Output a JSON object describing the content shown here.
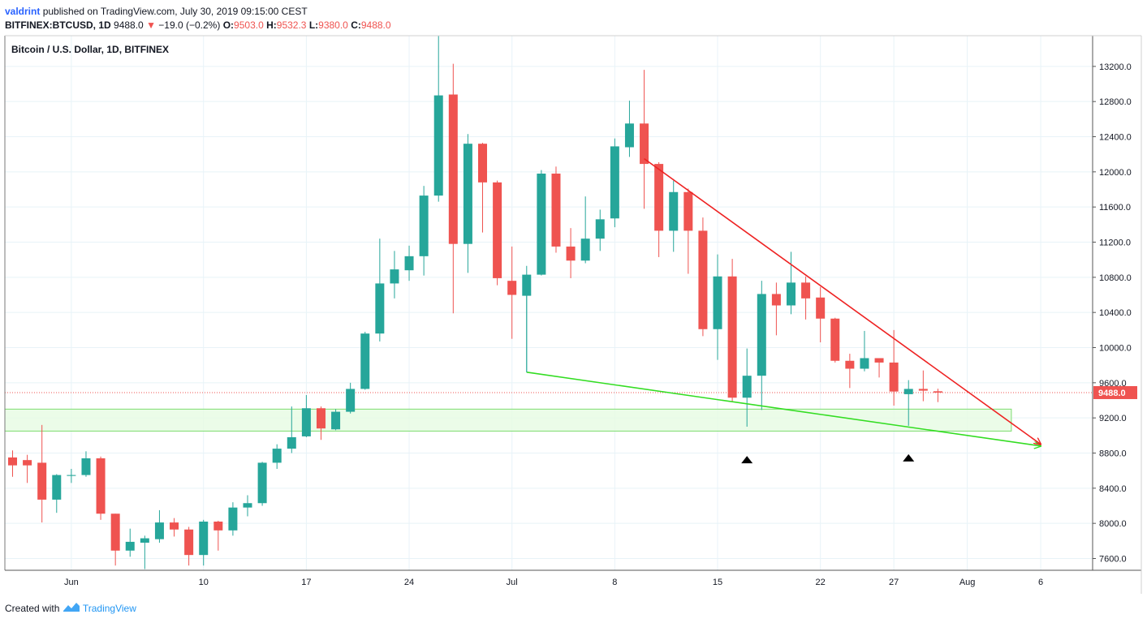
{
  "header": {
    "author": "valdrint",
    "published_text": "published on TradingView.com, July 30, 2019 09:15:00 CEST",
    "symbol": "BITFINEX:BTCUSD, 1D",
    "last": "9488.0",
    "change": "−19.0 (−0.2%)",
    "o_label": "O:",
    "o": "9503.0",
    "h_label": "H:",
    "h": "9532.3",
    "l_label": "L:",
    "l": "9380.0",
    "c_label": "C:",
    "c": "9488.0"
  },
  "footer": {
    "created_with": "Created with",
    "brand": "TradingView"
  },
  "colors": {
    "up": "#26a69a",
    "down": "#ef5350",
    "grid": "#e8f3f8",
    "axis": "#131722",
    "support_fill": "#e6fbe2",
    "support_stroke": "#7ddc6f",
    "lower_trendline": "#33dd22",
    "upper_trendline": "#ee2222",
    "price_line": "#ef5350"
  },
  "chart_data": {
    "type": "candlestick",
    "title": "Bitcoin / U.S. Dollar, 1D, BITFINEX",
    "ylim": [
      7480,
      13550
    ],
    "y_ticks": [
      7600,
      8000,
      8400,
      8800,
      9200,
      9600,
      10000,
      10400,
      10800,
      11200,
      11600,
      12000,
      12400,
      12800,
      13200
    ],
    "y_tick_labels": [
      "7600.0",
      "8000.0",
      "8400.0",
      "8800.0",
      "9200.0",
      "9600.0",
      "10000.0",
      "10400.0",
      "10800.0",
      "11200.0",
      "11600.0",
      "12000.0",
      "12400.0",
      "12800.0",
      "13200.0"
    ],
    "x_start": "2019-05-28",
    "x_end": "2019-08-06",
    "x_tick_labels": [
      {
        "date": "2019-06-01",
        "label": "Jun"
      },
      {
        "date": "2019-06-10",
        "label": "10"
      },
      {
        "date": "2019-06-17",
        "label": "17"
      },
      {
        "date": "2019-06-24",
        "label": "24"
      },
      {
        "date": "2019-07-01",
        "label": "Jul"
      },
      {
        "date": "2019-07-08",
        "label": "8"
      },
      {
        "date": "2019-07-15",
        "label": "15"
      },
      {
        "date": "2019-07-22",
        "label": "22"
      },
      {
        "date": "2019-07-27",
        "label": "27"
      },
      {
        "date": "2019-08-01",
        "label": "Aug"
      },
      {
        "date": "2019-08-06",
        "label": "6"
      }
    ],
    "last_price": 9488.0,
    "last_price_label": "9488.0",
    "candles": [
      {
        "date": "2019-05-28",
        "open": 8750,
        "high": 8830,
        "low": 8530,
        "close": 8660
      },
      {
        "date": "2019-05-29",
        "open": 8720,
        "high": 8780,
        "low": 8460,
        "close": 8660
      },
      {
        "date": "2019-05-30",
        "open": 8690,
        "high": 9120,
        "low": 8010,
        "close": 8270
      },
      {
        "date": "2019-05-31",
        "open": 8270,
        "high": 8560,
        "low": 8120,
        "close": 8550
      },
      {
        "date": "2019-06-01",
        "open": 8540,
        "high": 8620,
        "low": 8460,
        "close": 8550
      },
      {
        "date": "2019-06-02",
        "open": 8550,
        "high": 8820,
        "low": 8530,
        "close": 8740
      },
      {
        "date": "2019-06-03",
        "open": 8740,
        "high": 8760,
        "low": 8040,
        "close": 8110
      },
      {
        "date": "2019-06-04",
        "open": 8110,
        "high": 8110,
        "low": 7520,
        "close": 7690
      },
      {
        "date": "2019-06-05",
        "open": 7690,
        "high": 7940,
        "low": 7620,
        "close": 7790
      },
      {
        "date": "2019-06-06",
        "open": 7780,
        "high": 7860,
        "low": 7480,
        "close": 7830
      },
      {
        "date": "2019-06-07",
        "open": 7820,
        "high": 8150,
        "low": 7780,
        "close": 8010
      },
      {
        "date": "2019-06-08",
        "open": 8010,
        "high": 8060,
        "low": 7850,
        "close": 7930
      },
      {
        "date": "2019-06-09",
        "open": 7930,
        "high": 7960,
        "low": 7520,
        "close": 7640
      },
      {
        "date": "2019-06-10",
        "open": 7640,
        "high": 8040,
        "low": 7520,
        "close": 8020
      },
      {
        "date": "2019-06-11",
        "open": 8020,
        "high": 8030,
        "low": 7690,
        "close": 7920
      },
      {
        "date": "2019-06-12",
        "open": 7920,
        "high": 8240,
        "low": 7860,
        "close": 8180
      },
      {
        "date": "2019-06-13",
        "open": 8180,
        "high": 8320,
        "low": 8080,
        "close": 8230
      },
      {
        "date": "2019-06-14",
        "open": 8230,
        "high": 8700,
        "low": 8200,
        "close": 8690
      },
      {
        "date": "2019-06-15",
        "open": 8690,
        "high": 8900,
        "low": 8620,
        "close": 8850
      },
      {
        "date": "2019-06-16",
        "open": 8850,
        "high": 9330,
        "low": 8800,
        "close": 8980
      },
      {
        "date": "2019-06-17",
        "open": 8990,
        "high": 9460,
        "low": 8980,
        "close": 9310
      },
      {
        "date": "2019-06-18",
        "open": 9310,
        "high": 9330,
        "low": 8950,
        "close": 9080
      },
      {
        "date": "2019-06-19",
        "open": 9070,
        "high": 9300,
        "low": 9060,
        "close": 9270
      },
      {
        "date": "2019-06-20",
        "open": 9270,
        "high": 9600,
        "low": 9250,
        "close": 9530
      },
      {
        "date": "2019-06-21",
        "open": 9530,
        "high": 10180,
        "low": 9520,
        "close": 10160
      },
      {
        "date": "2019-06-22",
        "open": 10160,
        "high": 11240,
        "low": 10070,
        "close": 10730
      },
      {
        "date": "2019-06-23",
        "open": 10730,
        "high": 11100,
        "low": 10560,
        "close": 10890
      },
      {
        "date": "2019-06-24",
        "open": 10880,
        "high": 11160,
        "low": 10760,
        "close": 11040
      },
      {
        "date": "2019-06-25",
        "open": 11040,
        "high": 11840,
        "low": 10820,
        "close": 11730
      },
      {
        "date": "2019-06-26",
        "open": 11730,
        "high": 13550,
        "low": 11660,
        "close": 12870
      },
      {
        "date": "2019-06-27",
        "open": 12880,
        "high": 13230,
        "low": 10390,
        "close": 11180
      },
      {
        "date": "2019-06-28",
        "open": 11180,
        "high": 12430,
        "low": 10850,
        "close": 12320
      },
      {
        "date": "2019-06-29",
        "open": 12320,
        "high": 12330,
        "low": 11310,
        "close": 11880
      },
      {
        "date": "2019-06-30",
        "open": 11880,
        "high": 11900,
        "low": 10710,
        "close": 10790
      },
      {
        "date": "2019-07-01",
        "open": 10760,
        "high": 11150,
        "low": 10100,
        "close": 10600
      },
      {
        "date": "2019-07-02",
        "open": 10590,
        "high": 10930,
        "low": 9720,
        "close": 10830
      },
      {
        "date": "2019-07-03",
        "open": 10830,
        "high": 12020,
        "low": 10820,
        "close": 11980
      },
      {
        "date": "2019-07-04",
        "open": 11980,
        "high": 12060,
        "low": 11080,
        "close": 11150
      },
      {
        "date": "2019-07-05",
        "open": 11150,
        "high": 11360,
        "low": 10790,
        "close": 10990
      },
      {
        "date": "2019-07-06",
        "open": 10990,
        "high": 11720,
        "low": 10960,
        "close": 11240
      },
      {
        "date": "2019-07-07",
        "open": 11240,
        "high": 11570,
        "low": 11100,
        "close": 11460
      },
      {
        "date": "2019-07-08",
        "open": 11470,
        "high": 12380,
        "low": 11370,
        "close": 12290
      },
      {
        "date": "2019-07-09",
        "open": 12280,
        "high": 12810,
        "low": 12170,
        "close": 12550
      },
      {
        "date": "2019-07-10",
        "open": 12550,
        "high": 13160,
        "low": 11580,
        "close": 12090
      },
      {
        "date": "2019-07-11",
        "open": 12090,
        "high": 12110,
        "low": 11030,
        "close": 11330
      },
      {
        "date": "2019-07-12",
        "open": 11330,
        "high": 11900,
        "low": 11090,
        "close": 11770
      },
      {
        "date": "2019-07-13",
        "open": 11770,
        "high": 11810,
        "low": 10840,
        "close": 11330
      },
      {
        "date": "2019-07-14",
        "open": 11330,
        "high": 11480,
        "low": 10130,
        "close": 10210
      },
      {
        "date": "2019-07-15",
        "open": 10210,
        "high": 11060,
        "low": 9860,
        "close": 10810
      },
      {
        "date": "2019-07-16",
        "open": 10810,
        "high": 11010,
        "low": 9390,
        "close": 9430
      },
      {
        "date": "2019-07-17",
        "open": 9430,
        "high": 9990,
        "low": 9100,
        "close": 9680
      },
      {
        "date": "2019-07-18",
        "open": 9680,
        "high": 10760,
        "low": 9290,
        "close": 10610
      },
      {
        "date": "2019-07-19",
        "open": 10610,
        "high": 10740,
        "low": 10140,
        "close": 10480
      },
      {
        "date": "2019-07-20",
        "open": 10480,
        "high": 11090,
        "low": 10380,
        "close": 10740
      },
      {
        "date": "2019-07-21",
        "open": 10740,
        "high": 10810,
        "low": 10320,
        "close": 10560
      },
      {
        "date": "2019-07-22",
        "open": 10570,
        "high": 10690,
        "low": 10060,
        "close": 10330
      },
      {
        "date": "2019-07-23",
        "open": 10330,
        "high": 10340,
        "low": 9830,
        "close": 9850
      },
      {
        "date": "2019-07-24",
        "open": 9850,
        "high": 9930,
        "low": 9540,
        "close": 9760
      },
      {
        "date": "2019-07-25",
        "open": 9760,
        "high": 10190,
        "low": 9730,
        "close": 9880
      },
      {
        "date": "2019-07-26",
        "open": 9880,
        "high": 9880,
        "low": 9660,
        "close": 9830
      },
      {
        "date": "2019-07-27",
        "open": 9830,
        "high": 10200,
        "low": 9340,
        "close": 9500
      },
      {
        "date": "2019-07-28",
        "open": 9470,
        "high": 9630,
        "low": 9110,
        "close": 9530
      },
      {
        "date": "2019-07-29",
        "open": 9530,
        "high": 9740,
        "low": 9390,
        "close": 9510
      },
      {
        "date": "2019-07-30",
        "open": 9503,
        "high": 9532.3,
        "low": 9380,
        "close": 9488
      }
    ],
    "support_zone": {
      "from_date": "2019-05-28",
      "to_date": "2019-08-04",
      "low": 9050,
      "high": 9300
    },
    "trendlines": [
      {
        "name": "lower",
        "color": "#33dd22",
        "start": {
          "date": "2019-07-02",
          "price": 9720
        },
        "end": {
          "date": "2019-08-04",
          "price": 8880
        },
        "arrow": true
      },
      {
        "name": "upper",
        "color": "#ee2222",
        "start": {
          "date": "2019-07-10",
          "price": 12150
        },
        "end": {
          "date": "2019-08-04",
          "price": 8900
        },
        "arrow": true
      }
    ],
    "markers": [
      {
        "date": "2019-07-17",
        "price": 8730,
        "shape": "triangle-up"
      },
      {
        "date": "2019-07-28",
        "price": 8750,
        "shape": "triangle-up"
      }
    ],
    "grid": true
  }
}
